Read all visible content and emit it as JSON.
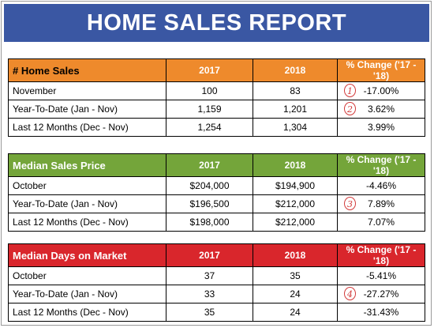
{
  "title": "HOME SALES REPORT",
  "tables": [
    {
      "header": [
        "# Home Sales",
        "2017",
        "2018",
        "% Change ('17 - '18)"
      ],
      "rows": [
        {
          "label": "November",
          "v2017": "100",
          "v2018": "83",
          "change": "-17.00%",
          "note": "1"
        },
        {
          "label": "Year-To-Date (Jan - Nov)",
          "v2017": "1,159",
          "v2018": "1,201",
          "change": "3.62%",
          "note": "2"
        },
        {
          "label": "Last 12 Months (Dec - Nov)",
          "v2017": "1,254",
          "v2018": "1,304",
          "change": "3.99%",
          "note": ""
        }
      ]
    },
    {
      "header": [
        "Median Sales Price",
        "2017",
        "2018",
        "% Change ('17 - '18)"
      ],
      "rows": [
        {
          "label": "October",
          "v2017": "$204,000",
          "v2018": "$194,900",
          "change": "-4.46%",
          "note": ""
        },
        {
          "label": "Year-To-Date (Jan - Nov)",
          "v2017": "$196,500",
          "v2018": "$212,000",
          "change": "7.89%",
          "note": "3"
        },
        {
          "label": "Last 12 Months (Dec - Nov)",
          "v2017": "$198,000",
          "v2018": "$212,000",
          "change": "7.07%",
          "note": ""
        }
      ]
    },
    {
      "header": [
        "Median Days on Market",
        "2017",
        "2018",
        "% Change ('17 - '18)"
      ],
      "rows": [
        {
          "label": "October",
          "v2017": "37",
          "v2018": "35",
          "change": "-5.41%",
          "note": ""
        },
        {
          "label": "Year-To-Date (Jan - Nov)",
          "v2017": "33",
          "v2018": "24",
          "change": "-27.27%",
          "note": "4"
        },
        {
          "label": "Last 12 Months (Dec - Nov)",
          "v2017": "35",
          "v2018": "24",
          "change": "-31.43%",
          "note": ""
        }
      ]
    }
  ],
  "colors": {
    "banner": "#3a57a3",
    "home_sales_header": "#ee8a2c",
    "median_price_header": "#74a53a",
    "days_on_market_header": "#d9262c",
    "annotation": "#d23a3a"
  }
}
